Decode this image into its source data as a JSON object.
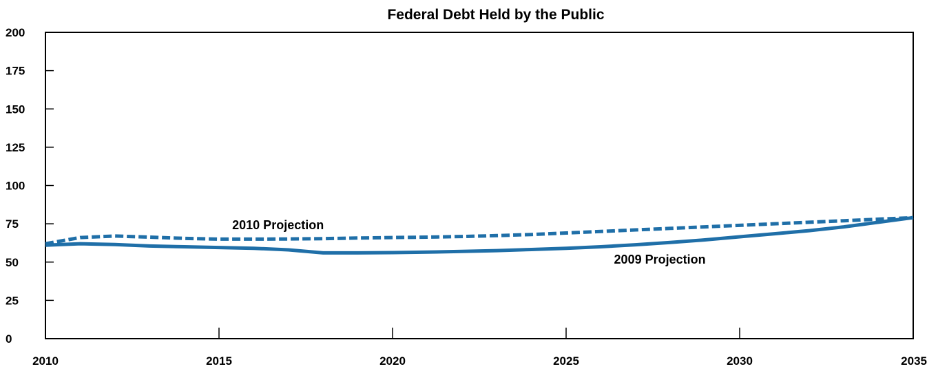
{
  "chart_data": {
    "type": "line",
    "title": "Federal Debt Held by the Public",
    "xlabel": "",
    "ylabel": "",
    "xlim": [
      2010,
      2035
    ],
    "ylim": [
      0,
      200
    ],
    "x_ticks": [
      "2010",
      "2015",
      "2020",
      "2025",
      "2030",
      "2035"
    ],
    "y_ticks": [
      "0",
      "25",
      "50",
      "75",
      "100",
      "125",
      "150",
      "175",
      "200"
    ],
    "grid": false,
    "legend": "none",
    "series": [
      {
        "name": "2010 Projection",
        "style": "dashed",
        "color": "#1f6fa8",
        "x": [
          2010,
          2011,
          2012,
          2013,
          2014,
          2015,
          2016,
          2017,
          2018,
          2019,
          2020,
          2021,
          2022,
          2023,
          2024,
          2025,
          2026,
          2027,
          2028,
          2029,
          2030,
          2031,
          2032,
          2033,
          2034,
          2035
        ],
        "values": [
          62,
          66,
          67,
          66.3,
          65.5,
          65,
          65,
          65.1,
          65.3,
          65.7,
          66,
          66.3,
          66.7,
          67.3,
          68,
          69,
          70,
          71,
          72,
          73,
          74,
          75,
          76,
          77,
          78,
          79
        ]
      },
      {
        "name": "2009 Projection",
        "style": "solid",
        "color": "#1f6fa8",
        "x": [
          2010,
          2011,
          2012,
          2013,
          2014,
          2015,
          2016,
          2017,
          2018,
          2019,
          2020,
          2021,
          2022,
          2023,
          2024,
          2025,
          2026,
          2027,
          2028,
          2029,
          2030,
          2031,
          2032,
          2033,
          2034,
          2035
        ],
        "values": [
          61,
          62,
          61.5,
          60.5,
          60,
          59.5,
          59,
          58,
          56,
          56,
          56.2,
          56.5,
          57,
          57.5,
          58.2,
          59,
          60,
          61.3,
          62.8,
          64.5,
          66.5,
          68.5,
          70.5,
          73,
          76,
          79
        ]
      }
    ],
    "annotations": [
      {
        "text": "2010 Projection",
        "x": 2016.7,
        "y": 71.5
      },
      {
        "text": "2009 Projection",
        "x": 2027.7,
        "y": 49
      }
    ]
  }
}
